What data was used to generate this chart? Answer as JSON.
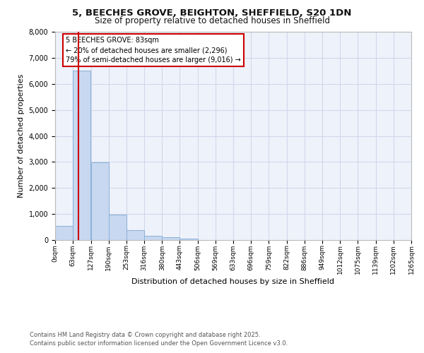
{
  "title_line1": "5, BEECHES GROVE, BEIGHTON, SHEFFIELD, S20 1DN",
  "title_line2": "Size of property relative to detached houses in Sheffield",
  "xlabel": "Distribution of detached houses by size in Sheffield",
  "ylabel": "Number of detached properties",
  "footnote_line1": "Contains HM Land Registry data © Crown copyright and database right 2025.",
  "footnote_line2": "Contains public sector information licensed under the Open Government Licence v3.0.",
  "bin_edges": [
    0,
    63,
    127,
    190,
    253,
    316,
    380,
    443,
    506,
    569,
    633,
    696,
    759,
    822,
    886,
    949,
    1012,
    1075,
    1139,
    1202,
    1265
  ],
  "bar_heights": [
    550,
    6500,
    2980,
    980,
    370,
    165,
    100,
    55,
    0,
    0,
    0,
    0,
    0,
    0,
    0,
    0,
    0,
    0,
    0,
    0
  ],
  "bar_color": "#c8d8f0",
  "bar_edgecolor": "#8ab0d8",
  "vline_x": 83,
  "vline_color": "#cc0000",
  "ylim": [
    0,
    8000
  ],
  "yticks": [
    0,
    1000,
    2000,
    3000,
    4000,
    5000,
    6000,
    7000,
    8000
  ],
  "annotation_text": "5 BEECHES GROVE: 83sqm\n← 20% of detached houses are smaller (2,296)\n79% of semi-detached houses are larger (9,016) →",
  "annotation_box_color": "#ffffff",
  "annotation_box_edgecolor": "#cc0000",
  "grid_color": "#d0d8ea",
  "background_color": "#eef2fa"
}
